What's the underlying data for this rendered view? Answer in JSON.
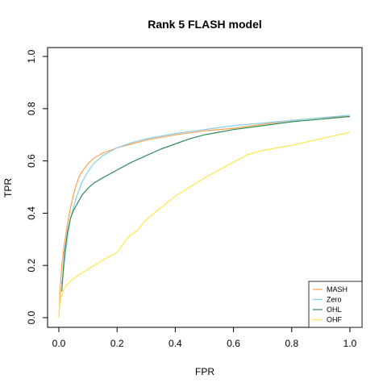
{
  "chart_data": {
    "type": "line",
    "title": "Rank 5 FLASH model",
    "xlabel": "FPR",
    "ylabel": "TPR",
    "xlim": [
      0,
      1
    ],
    "ylim": [
      0,
      1
    ],
    "x_ticks": [
      "0.0",
      "0.2",
      "0.4",
      "0.6",
      "0.8",
      "1.0"
    ],
    "y_ticks": [
      "0.0",
      "0.2",
      "0.4",
      "0.6",
      "0.8",
      "1.0"
    ],
    "grid": false,
    "legend_position": "bottom-right",
    "series": [
      {
        "name": "MASH",
        "color": "#ffa04d",
        "x": [
          0.0,
          0.005,
          0.01,
          0.02,
          0.03,
          0.04,
          0.05,
          0.06,
          0.07,
          0.08,
          0.1,
          0.12,
          0.15,
          0.2,
          0.25,
          0.3,
          0.4,
          0.5,
          0.6,
          0.7,
          0.8,
          0.9,
          1.0
        ],
        "y": [
          0.0,
          0.12,
          0.2,
          0.29,
          0.36,
          0.42,
          0.47,
          0.51,
          0.54,
          0.56,
          0.59,
          0.61,
          0.63,
          0.65,
          0.665,
          0.68,
          0.7,
          0.715,
          0.725,
          0.74,
          0.755,
          0.765,
          0.77
        ]
      },
      {
        "name": "Zero",
        "color": "#87ceeb",
        "x": [
          0.01,
          0.015,
          0.02,
          0.03,
          0.04,
          0.05,
          0.06,
          0.07,
          0.08,
          0.1,
          0.12,
          0.15,
          0.2,
          0.25,
          0.3,
          0.4,
          0.5,
          0.6,
          0.7,
          0.8,
          0.9,
          1.0
        ],
        "y": [
          0.13,
          0.17,
          0.22,
          0.31,
          0.38,
          0.42,
          0.46,
          0.49,
          0.52,
          0.56,
          0.59,
          0.62,
          0.65,
          0.67,
          0.685,
          0.705,
          0.72,
          0.735,
          0.745,
          0.755,
          0.765,
          0.775
        ]
      },
      {
        "name": "OHL",
        "color": "#2e8b57",
        "x": [
          0.01,
          0.015,
          0.02,
          0.03,
          0.04,
          0.05,
          0.06,
          0.07,
          0.08,
          0.1,
          0.12,
          0.15,
          0.2,
          0.25,
          0.3,
          0.35,
          0.4,
          0.45,
          0.5,
          0.55,
          0.6,
          0.7,
          0.8,
          0.9,
          1.0
        ],
        "y": [
          0.1,
          0.18,
          0.25,
          0.33,
          0.38,
          0.41,
          0.43,
          0.45,
          0.47,
          0.495,
          0.515,
          0.535,
          0.565,
          0.595,
          0.62,
          0.645,
          0.665,
          0.685,
          0.7,
          0.71,
          0.72,
          0.735,
          0.75,
          0.76,
          0.77
        ]
      },
      {
        "name": "OHF",
        "color": "#ffe84a",
        "x": [
          0.0,
          0.003,
          0.008,
          0.015,
          0.02,
          0.04,
          0.07,
          0.1,
          0.15,
          0.2,
          0.22,
          0.24,
          0.27,
          0.3,
          0.35,
          0.4,
          0.45,
          0.5,
          0.55,
          0.6,
          0.65,
          0.7,
          0.8,
          0.9,
          1.0
        ],
        "y": [
          0.0,
          0.05,
          0.08,
          0.1,
          0.115,
          0.14,
          0.165,
          0.185,
          0.22,
          0.25,
          0.28,
          0.31,
          0.335,
          0.375,
          0.42,
          0.465,
          0.5,
          0.535,
          0.565,
          0.595,
          0.625,
          0.64,
          0.66,
          0.685,
          0.71
        ]
      }
    ]
  }
}
